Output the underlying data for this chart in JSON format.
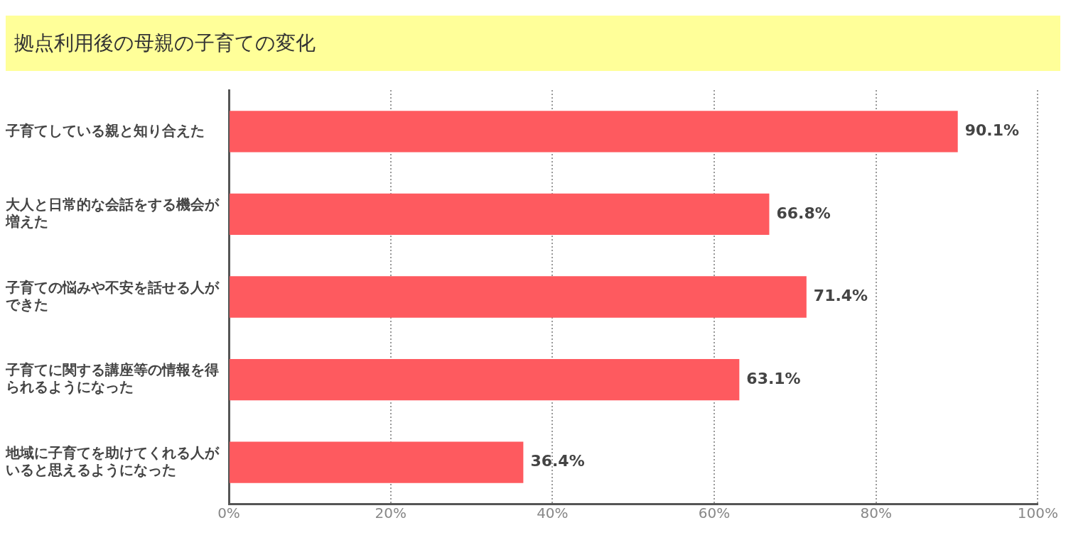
{
  "chart_data": {
    "type": "bar",
    "orientation": "horizontal",
    "title": "拠点利用後の母親の子育ての変化",
    "categories": [
      "子育てしている親と知り合えた",
      "大人と日常的な会話をする機会が増えた",
      "子育ての悩みや不安を話せる人ができた",
      "子育てに関する講座等の情報を得られるようになった",
      "地域に子育てを助けてくれる人がいると思えるようになった"
    ],
    "values": [
      90.1,
      66.8,
      71.4,
      63.1,
      36.4
    ],
    "value_labels": [
      "90.1%",
      "66.8%",
      "71.4%",
      "63.1%",
      "36.4%"
    ],
    "color": "#fe5a5f",
    "xlim": [
      0,
      100
    ],
    "xticks": [
      {
        "value": 0,
        "label": "0%"
      },
      {
        "value": 20,
        "label": "20%"
      },
      {
        "value": 40,
        "label": "40%"
      },
      {
        "value": 60,
        "label": "60%"
      },
      {
        "value": 80,
        "label": "80%"
      },
      {
        "value": 100,
        "label": "100%"
      }
    ],
    "grid": "x",
    "legend": false
  }
}
